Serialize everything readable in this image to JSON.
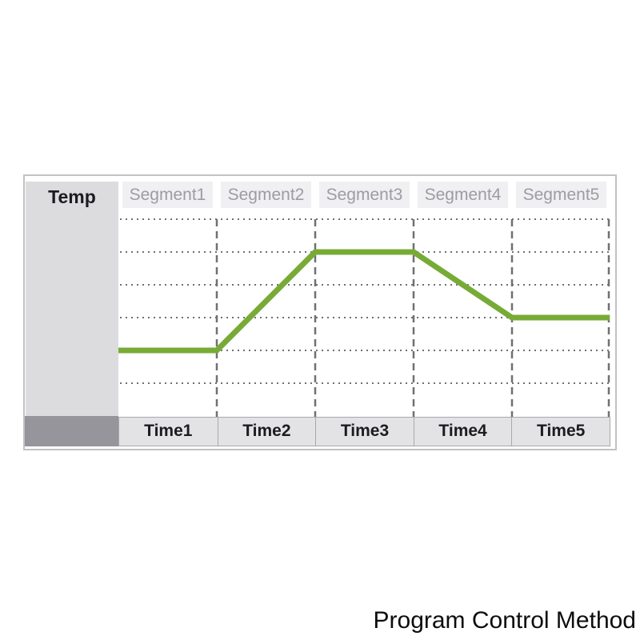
{
  "caption": "Program Control Method",
  "table": {
    "temp_label": "Temp",
    "segments": [
      "Segment1",
      "Segment2",
      "Segment3",
      "Segment4",
      "Segment5"
    ],
    "times": [
      "Time1",
      "Time2",
      "Time3",
      "Time4",
      "Time5"
    ]
  },
  "chart_data": {
    "type": "line",
    "series_name": "temperature-profile",
    "x_unit": "segment boundary (0 = start of Segment1, 5 = end of Segment5)",
    "y_unit": "dotted gridline index from top (1 = highest)",
    "gridlines": 6,
    "segment_count": 5,
    "x": [
      0,
      1,
      2,
      3,
      4,
      5
    ],
    "y_gridline_from_top": [
      5,
      5,
      2,
      2,
      4,
      4
    ]
  },
  "colors": {
    "line": "#78ab36",
    "grid_dots": "#707075",
    "grid_dash": "#707075",
    "outer_border": "#c2c2c4",
    "temp_bg": "#dcdcdf",
    "corner_bg": "#95959b",
    "segment_bg": "#f0f0f2",
    "segment_text": "#9c9ca2",
    "time_bg": "#e3e3e6",
    "time_border": "#a8a8ac",
    "text_dark": "#1c1c20"
  }
}
